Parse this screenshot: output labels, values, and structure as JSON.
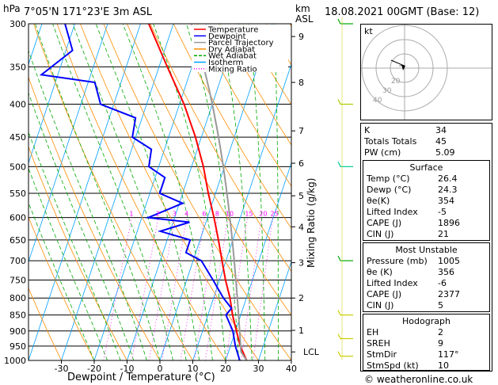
{
  "header": {
    "hpa_label": "hPa",
    "location": "7°05'N  171°23'E  3m  ASL",
    "km_label": "km",
    "asl_label": "ASL",
    "datetime": "18.08.2021  00GMT  (Base: 12)"
  },
  "legend": [
    {
      "label": "Temperature",
      "color": "#ff0000"
    },
    {
      "label": "Dewpoint",
      "color": "#0000ff"
    },
    {
      "label": "Parcel Trajectory",
      "color": "#999999"
    },
    {
      "label": "Dry Adiabat",
      "color": "#ff8c00"
    },
    {
      "label": "Wet Adiabat",
      "color": "#00aa00"
    },
    {
      "label": "Isotherm",
      "color": "#00a0ff"
    },
    {
      "label": "Mixing Ratio",
      "color": "#ff00ff"
    }
  ],
  "chart_data": {
    "type": "line",
    "xlabel": "Dewpoint / Temperature (°C)",
    "ylabel": "",
    "x_ticks": [
      -30,
      -20,
      -10,
      0,
      10,
      20,
      30,
      40
    ],
    "p_ticks": [
      300,
      350,
      400,
      450,
      500,
      550,
      600,
      650,
      700,
      750,
      800,
      850,
      900,
      950,
      1000
    ],
    "km_ticks": [
      {
        "km": "9",
        "p": 314
      },
      {
        "km": "8",
        "p": 370
      },
      {
        "km": "7",
        "p": 440
      },
      {
        "km": "6",
        "p": 494
      },
      {
        "km": "5",
        "p": 555
      },
      {
        "km": "4",
        "p": 620
      },
      {
        "km": "3",
        "p": 705
      },
      {
        "km": "2",
        "p": 800
      },
      {
        "km": "1",
        "p": 898
      }
    ],
    "lcl_label": "LCL",
    "lcl_p": 970,
    "mixing_ratio_label": "Mixing Ratio (g/kg)",
    "mixing_ratios": [
      "1",
      "2",
      "3",
      "4",
      "6",
      "8",
      "10",
      "15",
      "20",
      "25"
    ],
    "series": [
      {
        "name": "Temperature",
        "color": "#ff0000",
        "p": [
          1000,
          950,
          900,
          850,
          800,
          750,
          700,
          650,
          600,
          550,
          500,
          450,
          400,
          350,
          300
        ],
        "t": [
          26.4,
          23.0,
          20.3,
          17.5,
          15.0,
          11.8,
          8.8,
          5.6,
          2.0,
          -2.2,
          -6.4,
          -11.8,
          -18.6,
          -27.5,
          -37.5
        ]
      },
      {
        "name": "Dewpoint",
        "color": "#0000ff",
        "p": [
          1000,
          950,
          900,
          850,
          830,
          800,
          750,
          700,
          680,
          650,
          630,
          610,
          600,
          570,
          550,
          520,
          500,
          470,
          450,
          420,
          400,
          370,
          360,
          330,
          300
        ],
        "t": [
          24.3,
          21.5,
          19.2,
          15.5,
          16.5,
          13.0,
          8.0,
          2.5,
          -3.0,
          -3.0,
          -13.0,
          -5.0,
          -18.0,
          -9.0,
          -17.0,
          -17.0,
          -23.0,
          -24.0,
          -31.0,
          -32.0,
          -44.0,
          -48.0,
          -65.0,
          -58.0,
          -63.0
        ]
      }
    ]
  },
  "hodograph": {
    "label": "kt",
    "rings": [
      "20",
      "30",
      "40"
    ]
  },
  "indices": {
    "rows": [
      {
        "k": "K",
        "v": "34"
      },
      {
        "k": "Totals Totals",
        "v": "45"
      },
      {
        "k": "PW (cm)",
        "v": "5.09"
      }
    ],
    "surface_title": "Surface",
    "surface": [
      {
        "k": "Temp (°C)",
        "v": "26.4"
      },
      {
        "k": "Dewp (°C)",
        "v": "24.3"
      },
      {
        "k": "θe(K)",
        "v": "354"
      },
      {
        "k": "Lifted Index",
        "v": "-5"
      },
      {
        "k": "CAPE (J)",
        "v": "1896"
      },
      {
        "k": "CIN (J)",
        "v": "21"
      }
    ],
    "mu_title": "Most Unstable",
    "mu": [
      {
        "k": "Pressure (mb)",
        "v": "1005"
      },
      {
        "k": "θe (K)",
        "v": "356"
      },
      {
        "k": "Lifted Index",
        "v": "-6"
      },
      {
        "k": "CAPE (J)",
        "v": "2377"
      },
      {
        "k": "CIN (J)",
        "v": "5"
      }
    ],
    "hodo_title": "Hodograph",
    "hodo": [
      {
        "k": "EH",
        "v": "2"
      },
      {
        "k": "SREH",
        "v": "9"
      },
      {
        "k": "StmDir",
        "v": "117°"
      },
      {
        "k": "StmSpd (kt)",
        "v": "10"
      }
    ]
  },
  "credit": "© weatheronline.co.uk"
}
